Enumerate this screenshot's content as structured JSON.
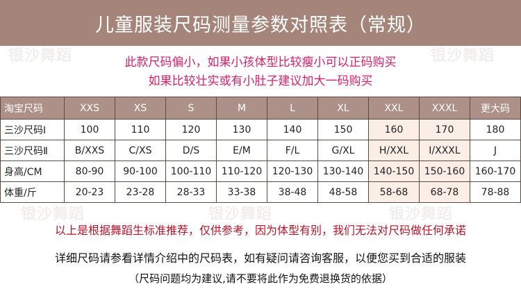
{
  "header": {
    "title": "儿童服装尺码测量参数对照表（常规）"
  },
  "notice": {
    "line1": "此款尺码偏小，如果小孩体型比较瘦小可以正码购买",
    "line2": "如果比较壮实或有小肚子建议加大一码购买"
  },
  "watermark": {
    "text": "银沙舞蹈"
  },
  "table": {
    "rows": [
      {
        "label": "淘宝尺码",
        "cells": [
          "XXS",
          "XS",
          "S",
          "M",
          "L",
          "XL",
          "XXL",
          "XXXL",
          "更大码"
        ]
      },
      {
        "label": "三沙尺码Ⅰ",
        "cells": [
          "100",
          "110",
          "120",
          "130",
          "140",
          "150",
          "160",
          "170",
          "180"
        ]
      },
      {
        "label": "三沙尺码Ⅱ",
        "cells": [
          "B/XXS",
          "C/XS",
          "D/S",
          "E/M",
          "F/L",
          "G/XL",
          "H/XXL",
          "I/XXXL",
          "J"
        ]
      },
      {
        "label": "身高/CM",
        "cells": [
          "80-90",
          "90-100",
          "100-110",
          "110-120",
          "120-130",
          "130-140",
          "140-150",
          "150-160",
          "160-170"
        ]
      },
      {
        "label": "体重/斤",
        "cells": [
          "20-23",
          "23-28",
          "28-33",
          "33-38",
          "38-48",
          "48-58",
          "58-68",
          "68-78",
          "78-88"
        ]
      }
    ]
  },
  "footer": {
    "line1": "以上是根据舞蹈生标准推荐，仅供参考，因为体型有别，我们无法对尺码做任何承诺",
    "line2": "详细尺码请参看详情介绍中的尺码表，如有疑问请咨询客服，以便您买到合适的服装",
    "line3": "（尺码问题均为建议,请不要将此作为免费退换货的依据）"
  },
  "colors": {
    "header_bg": "#a5857a",
    "notice": "#d8206a",
    "footer_warning": "#b5142a",
    "highlight": "#fbeee6"
  }
}
